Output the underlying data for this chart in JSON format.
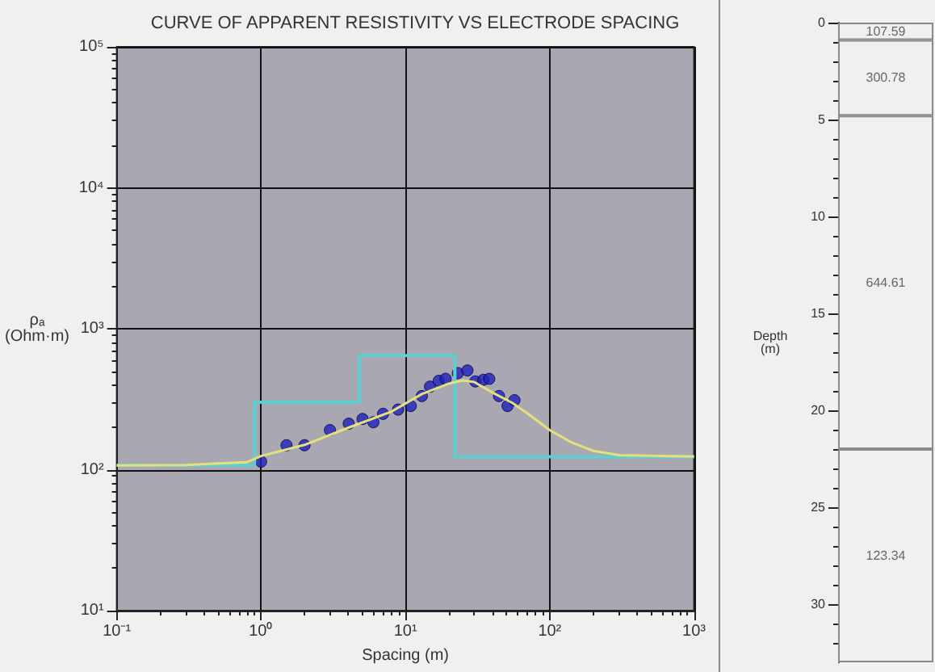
{
  "chart_data": [
    {
      "type": "scatter",
      "title": "CURVE OF APPARENT RESISTIVITY VS ELECTRODE SPACING",
      "xlabel": "Spacing (m)",
      "ylabel": "ρₐ\n(Ohm·m)",
      "log": "xy",
      "grid": true,
      "xlim": [
        0.1,
        1000
      ],
      "ylim": [
        10,
        100000
      ],
      "xticks": [
        {
          "value": 0.1,
          "label": "10⁻¹"
        },
        {
          "value": 1,
          "label": "10⁰"
        },
        {
          "value": 10,
          "label": "10¹"
        },
        {
          "value": 100,
          "label": "10²"
        },
        {
          "value": 1000,
          "label": "10³"
        }
      ],
      "yticks": [
        {
          "value": 10,
          "label": "10¹"
        },
        {
          "value": 100,
          "label": "10²"
        },
        {
          "value": 1000,
          "label": "10³"
        },
        {
          "value": 10000,
          "label": "10⁴"
        },
        {
          "value": 100000,
          "label": "10⁵"
        }
      ],
      "series": [
        {
          "type": "step",
          "color": "#5ccfd0",
          "x": [
            0.1,
            0.9,
            4.8,
            22,
            1000
          ],
          "values": [
            107.59,
            300.78,
            644.61,
            123.34,
            123.34
          ]
        },
        {
          "type": "line",
          "color": "#e6e07a",
          "x": [
            0.1,
            0.3,
            0.8,
            1,
            2,
            4,
            8,
            13,
            20,
            25,
            30,
            40,
            55,
            70,
            100,
            140,
            200,
            300,
            1000
          ],
          "values": [
            107,
            108,
            113,
            125,
            150,
            198,
            258,
            344,
            408,
            430,
            419,
            353,
            298,
            251,
            191,
            157,
            136,
            127,
            124
          ]
        },
        {
          "type": "scatter",
          "color": "#1e22b8",
          "marker": "circle",
          "x": [
            1,
            1.5,
            2,
            3,
            4.05,
            5.05,
            6,
            7,
            8.9,
            10.9,
            13,
            14.8,
            17,
            19,
            23.1,
            26.9,
            30.5,
            34.7,
            38.1,
            44.5,
            51,
            57
          ],
          "values": [
            114,
            149,
            149,
            191,
            212,
            229,
            217,
            249,
            267,
            283,
            333,
            388,
            427,
            441,
            484,
            506,
            423,
            434,
            441,
            333,
            283,
            311
          ]
        }
      ]
    },
    {
      "type": "bar",
      "stacked": true,
      "ylabel": "Depth\n(m)",
      "categories": [
        null
      ],
      "ylim": [
        33,
        0
      ],
      "yticks": [
        0,
        5,
        10,
        15,
        20,
        25,
        30
      ],
      "tick_labels": "y",
      "annotations": [
        "107.59",
        "300.78",
        "644.61",
        "123.34"
      ],
      "series": [
        {
          "color": "#f0f0f0",
          "values": [
            0.9
          ]
        },
        {
          "color": "#f0f0f0",
          "values": [
            3.9
          ]
        },
        {
          "color": "#f0f0f0",
          "values": [
            17.2
          ]
        },
        {
          "color": "#f0f0f0",
          "values": [
            11
          ]
        }
      ]
    }
  ]
}
